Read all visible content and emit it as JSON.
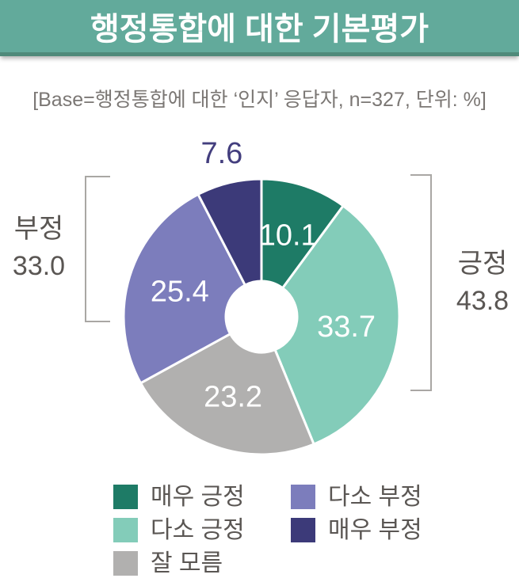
{
  "header": {
    "title": "행정통합에 대한 기본평가"
  },
  "subtitle": "[Base=행정통합에 대한 ‘인지’ 응답자, n=327, 단위: %]",
  "chart_data": {
    "type": "pie",
    "donut": true,
    "title": "행정통합에 대한 기본평가",
    "base_note": "[Base=행정통합에 대한 ‘인지’ 응답자, n=327, 단위: %]",
    "n": 327,
    "unit": "%",
    "start_angle_deg": 0,
    "direction": "clockwise",
    "segments": [
      {
        "label": "매우 긍정",
        "value": 10.1,
        "value_display": "10.1",
        "color": "#1e7b66",
        "label_placement": "inside"
      },
      {
        "label": "다소 긍정",
        "value": 33.7,
        "value_display": "33.7",
        "color": "#83ccb9",
        "label_placement": "inside"
      },
      {
        "label": "잘 모름",
        "value": 23.2,
        "value_display": "23.2",
        "color": "#b1b0af",
        "label_placement": "inside"
      },
      {
        "label": "다소 부정",
        "value": 25.4,
        "value_display": "25.4",
        "color": "#7c7dbc",
        "label_placement": "inside"
      },
      {
        "label": "매우 부정",
        "value": 7.6,
        "value_display": "7.6",
        "color": "#3c3a79",
        "label_placement": "outside"
      }
    ],
    "annotations": [
      {
        "label": "긍정",
        "value": 43.8,
        "value_display": "43.8",
        "side": "right"
      },
      {
        "label": "부정",
        "value": 33.0,
        "value_display": "33.0",
        "side": "left"
      }
    ],
    "legend_position": "bottom",
    "colors": {
      "header_bg": "#62aa9b",
      "header_border": "#4f8a7a",
      "slice_label_text": "#ffffff",
      "outside_label_text": "#433e7e",
      "annotation_text": "#5a5653",
      "bracket": "#a9a7a4",
      "subtitle_text": "#7b7774"
    }
  }
}
